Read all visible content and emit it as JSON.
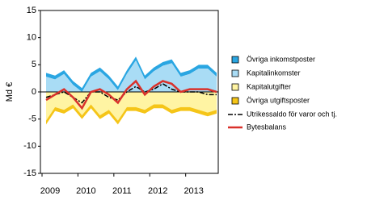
{
  "chart_data": {
    "type": "area",
    "ylabel": "Md €",
    "categories": [
      "2009",
      null,
      null,
      null,
      "2010",
      null,
      null,
      null,
      "2011",
      null,
      null,
      null,
      "2012",
      null,
      null,
      null,
      "2013",
      null,
      null,
      null
    ],
    "ylim": [
      -15,
      15
    ],
    "yticks": [
      -15,
      -10,
      -5,
      0,
      5,
      10,
      15
    ],
    "grid": false,
    "series": [
      {
        "name": "Övriga inkomstposter",
        "kind": "area",
        "color": "#2aa6e2",
        "values": [
          0.7,
          0.7,
          0.7,
          0.7,
          0.7,
          0.7,
          0.7,
          0.7,
          0.7,
          0.7,
          0.7,
          0.7,
          0.7,
          0.7,
          0.7,
          0.7,
          0.7,
          0.7,
          0.7,
          0.7
        ]
      },
      {
        "name": "Kapitalinkomster",
        "kind": "area",
        "color": "#a9dcf5",
        "values": [
          2.8,
          2.3,
          3.3,
          1.3,
          -0.7,
          2.8,
          3.8,
          2.3,
          0.3,
          3.3,
          5.8,
          2.3,
          3.8,
          4.8,
          5.3,
          2.8,
          3.3,
          4.3,
          4.3,
          2.8
        ]
      },
      {
        "name": "Kapitalutgifter",
        "kind": "area",
        "color": "#fff4a3",
        "values": [
          -5.3,
          -2.8,
          -3.3,
          -2.3,
          -4.3,
          -2.3,
          -4.3,
          -3.3,
          -5.3,
          -2.8,
          -2.8,
          -3.3,
          -2.3,
          -2.3,
          -3.3,
          -2.8,
          -2.8,
          -3.3,
          -3.8,
          -3.3
        ]
      },
      {
        "name": "Övriga utgiftsposter",
        "kind": "area",
        "color": "#f5c518",
        "values": [
          -0.7,
          -0.7,
          -0.7,
          -0.7,
          -0.7,
          -0.7,
          -0.7,
          -0.7,
          -0.7,
          -0.7,
          -0.7,
          -0.7,
          -0.7,
          -0.7,
          -0.7,
          -0.7,
          -0.7,
          -0.7,
          -0.7,
          -0.7
        ]
      },
      {
        "name": "Utrikessaldo för varor och tj.",
        "kind": "line",
        "dash": "6,2,2,2",
        "color": "#000000",
        "values": [
          -1,
          -0.5,
          0,
          -1,
          -2,
          0,
          0,
          -1,
          -1.5,
          0,
          1,
          0,
          0.5,
          1.5,
          0.5,
          0,
          0,
          0,
          -0.5,
          -0.5
        ]
      },
      {
        "name": "Bytesbalans",
        "kind": "line",
        "color": "#d9312b",
        "values": [
          -1.5,
          -0.5,
          0.5,
          -1,
          -3,
          0,
          0.5,
          -0.5,
          -2,
          0.5,
          2,
          -0.5,
          1,
          2,
          1.5,
          0,
          0.5,
          0.5,
          0.5,
          0
        ]
      }
    ]
  }
}
